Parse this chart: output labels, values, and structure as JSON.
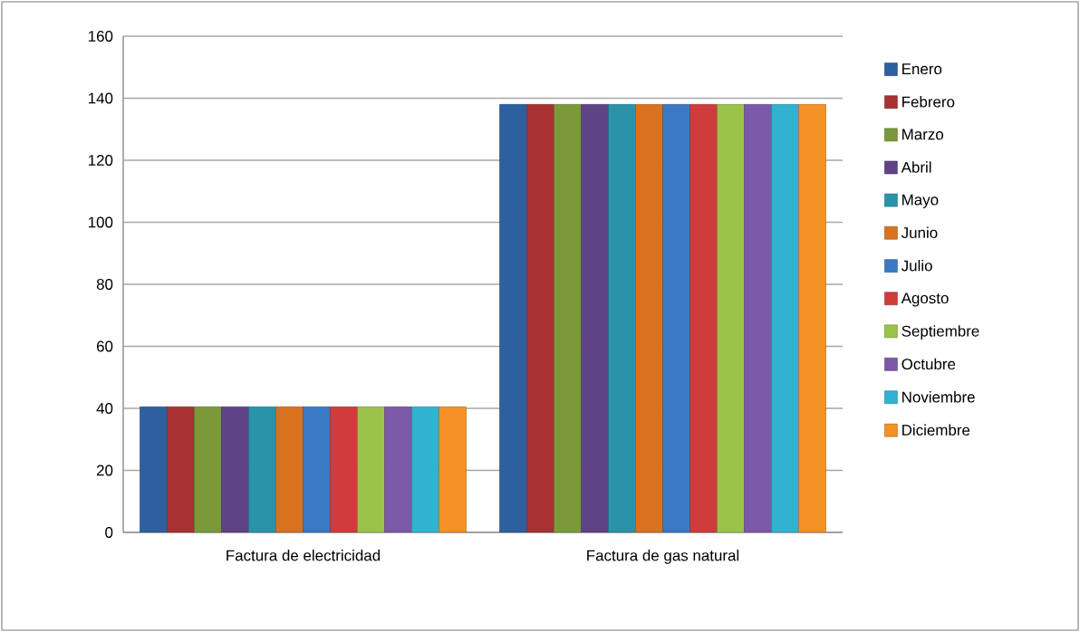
{
  "chart_data": {
    "type": "bar",
    "categories": [
      "Factura de electricidad",
      "Factura de gas natural"
    ],
    "series": [
      {
        "name": "Enero",
        "color": "#2e5f9e",
        "values": [
          40.5,
          138
        ]
      },
      {
        "name": "Febrero",
        "color": "#a83232",
        "values": [
          40.5,
          138
        ]
      },
      {
        "name": "Marzo",
        "color": "#7a9a3a",
        "values": [
          40.5,
          138
        ]
      },
      {
        "name": "Abril",
        "color": "#5f4387",
        "values": [
          40.5,
          138
        ]
      },
      {
        "name": "Mayo",
        "color": "#2a93aa",
        "values": [
          40.5,
          138
        ]
      },
      {
        "name": "Junio",
        "color": "#d8721f",
        "values": [
          40.5,
          138
        ]
      },
      {
        "name": "Julio",
        "color": "#3b78c4",
        "values": [
          40.5,
          138
        ]
      },
      {
        "name": "Agosto",
        "color": "#d03c3c",
        "values": [
          40.5,
          138
        ]
      },
      {
        "name": "Septiembre",
        "color": "#9bc34a",
        "values": [
          40.5,
          138
        ]
      },
      {
        "name": "Octubre",
        "color": "#7c58a8",
        "values": [
          40.5,
          138
        ]
      },
      {
        "name": "Noviembre",
        "color": "#30b3d0",
        "values": [
          40.5,
          138
        ]
      },
      {
        "name": "Diciembre",
        "color": "#f39127",
        "values": [
          40.5,
          138
        ]
      }
    ],
    "ylim": [
      0,
      160
    ],
    "yticks": [
      0,
      20,
      40,
      60,
      80,
      100,
      120,
      140,
      160
    ],
    "grid": "y",
    "legend": "right"
  }
}
